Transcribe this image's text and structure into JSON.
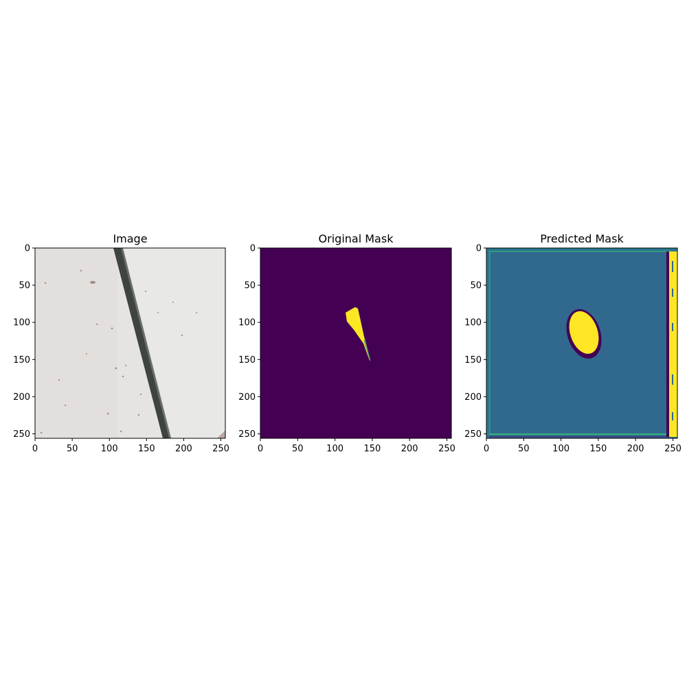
{
  "figure": {
    "panels": [
      {
        "id": "image",
        "title": "Image",
        "kind": "photo",
        "xticks": [
          0,
          50,
          100,
          150,
          200,
          250
        ],
        "yticks": [
          0,
          50,
          100,
          150,
          200,
          250
        ],
        "xlim": [
          0,
          256
        ],
        "ylim": [
          256,
          0
        ],
        "colors": {
          "background": "#e4e3e1",
          "slab": "#3f4440"
        }
      },
      {
        "id": "original-mask",
        "title": "Original Mask",
        "kind": "mask",
        "xticks": [
          0,
          50,
          100,
          150,
          200,
          250
        ],
        "yticks": [
          0,
          50,
          100,
          150,
          200,
          250
        ],
        "xlim": [
          0,
          256
        ],
        "ylim": [
          256,
          0
        ],
        "colors": {
          "background": "#440154",
          "foreground": "#fde725",
          "edge": "#21918c"
        }
      },
      {
        "id": "predicted-mask",
        "title": "Predicted Mask",
        "kind": "mask",
        "xticks": [
          0,
          50,
          100,
          150,
          200,
          250
        ],
        "yticks": [
          0,
          50,
          100,
          150,
          200,
          250
        ],
        "xlim": [
          0,
          256
        ],
        "ylim": [
          256,
          0
        ],
        "colors": {
          "background": "#31688e",
          "foreground": "#fde725",
          "halo": "#440154",
          "border": "#35b779"
        }
      }
    ]
  }
}
